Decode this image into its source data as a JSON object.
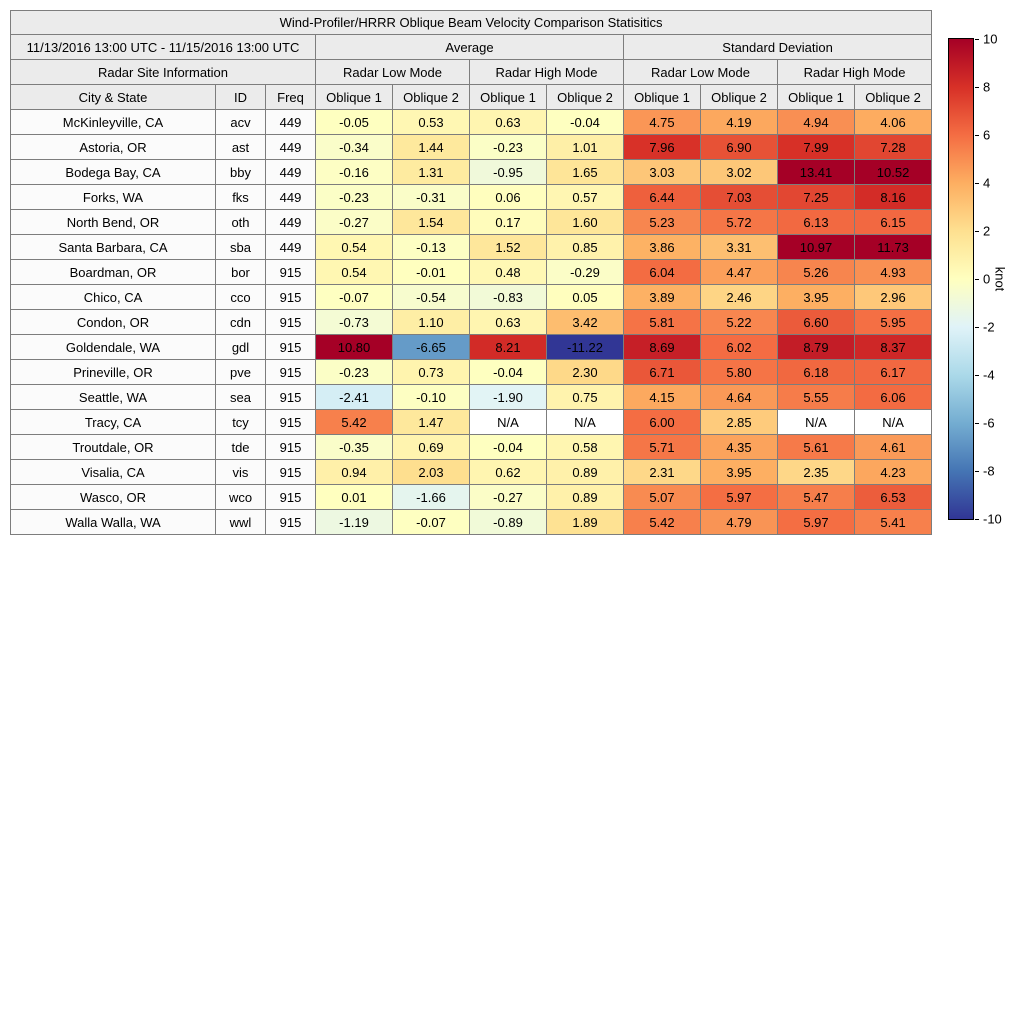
{
  "figure": {
    "title": "Wind-Profiler/HRRR Oblique Beam Velocity Comparison Statisitics",
    "date_range": "11/13/2016 13:00 UTC - 11/15/2016 13:00 UTC",
    "group_average": "Average",
    "group_std": "Standard Deviation",
    "site_info": "Radar Site Information",
    "low_mode": "Radar Low Mode",
    "high_mode": "Radar High Mode",
    "col_city": "City & State",
    "col_id": "ID",
    "col_freq": "Freq",
    "col_oblique1": "Oblique 1",
    "col_oblique2": "Oblique 2",
    "na_text": "N/A"
  },
  "colorbar": {
    "label": "knot",
    "min": -10,
    "max": 10,
    "ticks": [
      "10",
      "8",
      "6",
      "4",
      "2",
      "0",
      "-2",
      "-4",
      "-6",
      "-8",
      "-10"
    ],
    "colors_top_to_bottom": [
      "#a50026",
      "#d73027",
      "#f46d43",
      "#fdae61",
      "#fee090",
      "#ffffbf",
      "#e0f3f8",
      "#abd9e9",
      "#74add1",
      "#4575b4",
      "#313695"
    ],
    "na_color": "#ffffff"
  },
  "chart_data": {
    "type": "heatmap",
    "title": "Wind-Profiler/HRRR Oblique Beam Velocity Comparison Statisitics",
    "subtitle": "11/13/2016 13:00 UTC - 11/15/2016 13:00 UTC",
    "unit": "knot",
    "vmin": -10,
    "vmax": 10,
    "colormap": "RdYlBu_r",
    "value_columns": [
      "Average / Radar Low Mode / Oblique 1",
      "Average / Radar Low Mode / Oblique 2",
      "Average / Radar High Mode / Oblique 1",
      "Average / Radar High Mode / Oblique 2",
      "Standard Deviation / Radar Low Mode / Oblique 1",
      "Standard Deviation / Radar Low Mode / Oblique 2",
      "Standard Deviation / Radar High Mode / Oblique 1",
      "Standard Deviation / Radar High Mode / Oblique 2"
    ],
    "sites": [
      {
        "city": "McKinleyville, CA",
        "id": "acv",
        "freq": "449",
        "values": [
          "-0.05",
          "0.53",
          "0.63",
          "-0.04",
          "4.75",
          "4.19",
          "4.94",
          "4.06"
        ]
      },
      {
        "city": "Astoria, OR",
        "id": "ast",
        "freq": "449",
        "values": [
          "-0.34",
          "1.44",
          "-0.23",
          "1.01",
          "7.96",
          "6.90",
          "7.99",
          "7.28"
        ]
      },
      {
        "city": "Bodega Bay, CA",
        "id": "bby",
        "freq": "449",
        "values": [
          "-0.16",
          "1.31",
          "-0.95",
          "1.65",
          "3.03",
          "3.02",
          "13.41",
          "10.52"
        ]
      },
      {
        "city": "Forks, WA",
        "id": "fks",
        "freq": "449",
        "values": [
          "-0.23",
          "-0.31",
          "0.06",
          "0.57",
          "6.44",
          "7.03",
          "7.25",
          "8.16"
        ]
      },
      {
        "city": "North Bend, OR",
        "id": "oth",
        "freq": "449",
        "values": [
          "-0.27",
          "1.54",
          "0.17",
          "1.60",
          "5.23",
          "5.72",
          "6.13",
          "6.15"
        ]
      },
      {
        "city": "Santa Barbara, CA",
        "id": "sba",
        "freq": "449",
        "values": [
          "0.54",
          "-0.13",
          "1.52",
          "0.85",
          "3.86",
          "3.31",
          "10.97",
          "11.73"
        ]
      },
      {
        "city": "Boardman, OR",
        "id": "bor",
        "freq": "915",
        "values": [
          "0.54",
          "-0.01",
          "0.48",
          "-0.29",
          "6.04",
          "4.47",
          "5.26",
          "4.93"
        ]
      },
      {
        "city": "Chico, CA",
        "id": "cco",
        "freq": "915",
        "values": [
          "-0.07",
          "-0.54",
          "-0.83",
          "0.05",
          "3.89",
          "2.46",
          "3.95",
          "2.96"
        ]
      },
      {
        "city": "Condon, OR",
        "id": "cdn",
        "freq": "915",
        "values": [
          "-0.73",
          "1.10",
          "0.63",
          "3.42",
          "5.81",
          "5.22",
          "6.60",
          "5.95"
        ]
      },
      {
        "city": "Goldendale, WA",
        "id": "gdl",
        "freq": "915",
        "values": [
          "10.80",
          "-6.65",
          "8.21",
          "-11.22",
          "8.69",
          "6.02",
          "8.79",
          "8.37"
        ]
      },
      {
        "city": "Prineville, OR",
        "id": "pve",
        "freq": "915",
        "values": [
          "-0.23",
          "0.73",
          "-0.04",
          "2.30",
          "6.71",
          "5.80",
          "6.18",
          "6.17"
        ]
      },
      {
        "city": "Seattle, WA",
        "id": "sea",
        "freq": "915",
        "values": [
          "-2.41",
          "-0.10",
          "-1.90",
          "0.75",
          "4.15",
          "4.64",
          "5.55",
          "6.06"
        ]
      },
      {
        "city": "Tracy, CA",
        "id": "tcy",
        "freq": "915",
        "values": [
          "5.42",
          "1.47",
          "N/A",
          "N/A",
          "6.00",
          "2.85",
          "N/A",
          "N/A"
        ]
      },
      {
        "city": "Troutdale, OR",
        "id": "tde",
        "freq": "915",
        "values": [
          "-0.35",
          "0.69",
          "-0.04",
          "0.58",
          "5.71",
          "4.35",
          "5.61",
          "4.61"
        ]
      },
      {
        "city": "Visalia, CA",
        "id": "vis",
        "freq": "915",
        "values": [
          "0.94",
          "2.03",
          "0.62",
          "0.89",
          "2.31",
          "3.95",
          "2.35",
          "4.23"
        ]
      },
      {
        "city": "Wasco, OR",
        "id": "wco",
        "freq": "915",
        "values": [
          "0.01",
          "-1.66",
          "-0.27",
          "0.89",
          "5.07",
          "5.97",
          "5.47",
          "6.53"
        ]
      },
      {
        "city": "Walla Walla, WA",
        "id": "wwl",
        "freq": "915",
        "values": [
          "-1.19",
          "-0.07",
          "-0.89",
          "1.89",
          "5.42",
          "4.79",
          "5.97",
          "5.41"
        ]
      }
    ]
  }
}
